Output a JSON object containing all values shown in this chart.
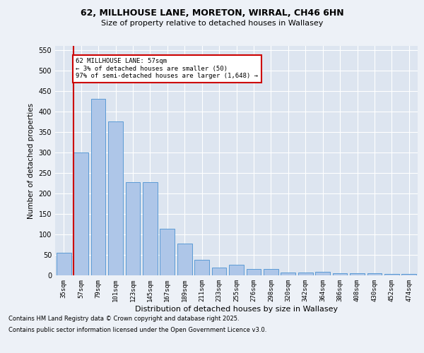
{
  "title1": "62, MILLHOUSE LANE, MORETON, WIRRAL, CH46 6HN",
  "title2": "Size of property relative to detached houses in Wallasey",
  "xlabel": "Distribution of detached houses by size in Wallasey",
  "ylabel": "Number of detached properties",
  "categories": [
    "35sqm",
    "57sqm",
    "79sqm",
    "101sqm",
    "123sqm",
    "145sqm",
    "167sqm",
    "189sqm",
    "211sqm",
    "233sqm",
    "255sqm",
    "276sqm",
    "298sqm",
    "320sqm",
    "342sqm",
    "364sqm",
    "386sqm",
    "408sqm",
    "430sqm",
    "452sqm",
    "474sqm"
  ],
  "values": [
    55,
    300,
    430,
    375,
    228,
    228,
    113,
    78,
    38,
    19,
    25,
    15,
    15,
    7,
    7,
    8,
    5,
    5,
    5,
    4,
    4
  ],
  "bar_color": "#aec6e8",
  "bar_edge_color": "#5b9bd5",
  "highlight_bar_idx": 1,
  "highlight_color": "#cc0000",
  "annotation_title": "62 MILLHOUSE LANE: 57sqm",
  "annotation_line1": "← 3% of detached houses are smaller (50)",
  "annotation_line2": "97% of semi-detached houses are larger (1,648) →",
  "annotation_box_color": "#cc0000",
  "ylim": [
    0,
    560
  ],
  "yticks": [
    0,
    50,
    100,
    150,
    200,
    250,
    300,
    350,
    400,
    450,
    500,
    550
  ],
  "footer1": "Contains HM Land Registry data © Crown copyright and database right 2025.",
  "footer2": "Contains public sector information licensed under the Open Government Licence v3.0.",
  "bg_color": "#edf1f7",
  "plot_bg_color": "#dde5f0"
}
